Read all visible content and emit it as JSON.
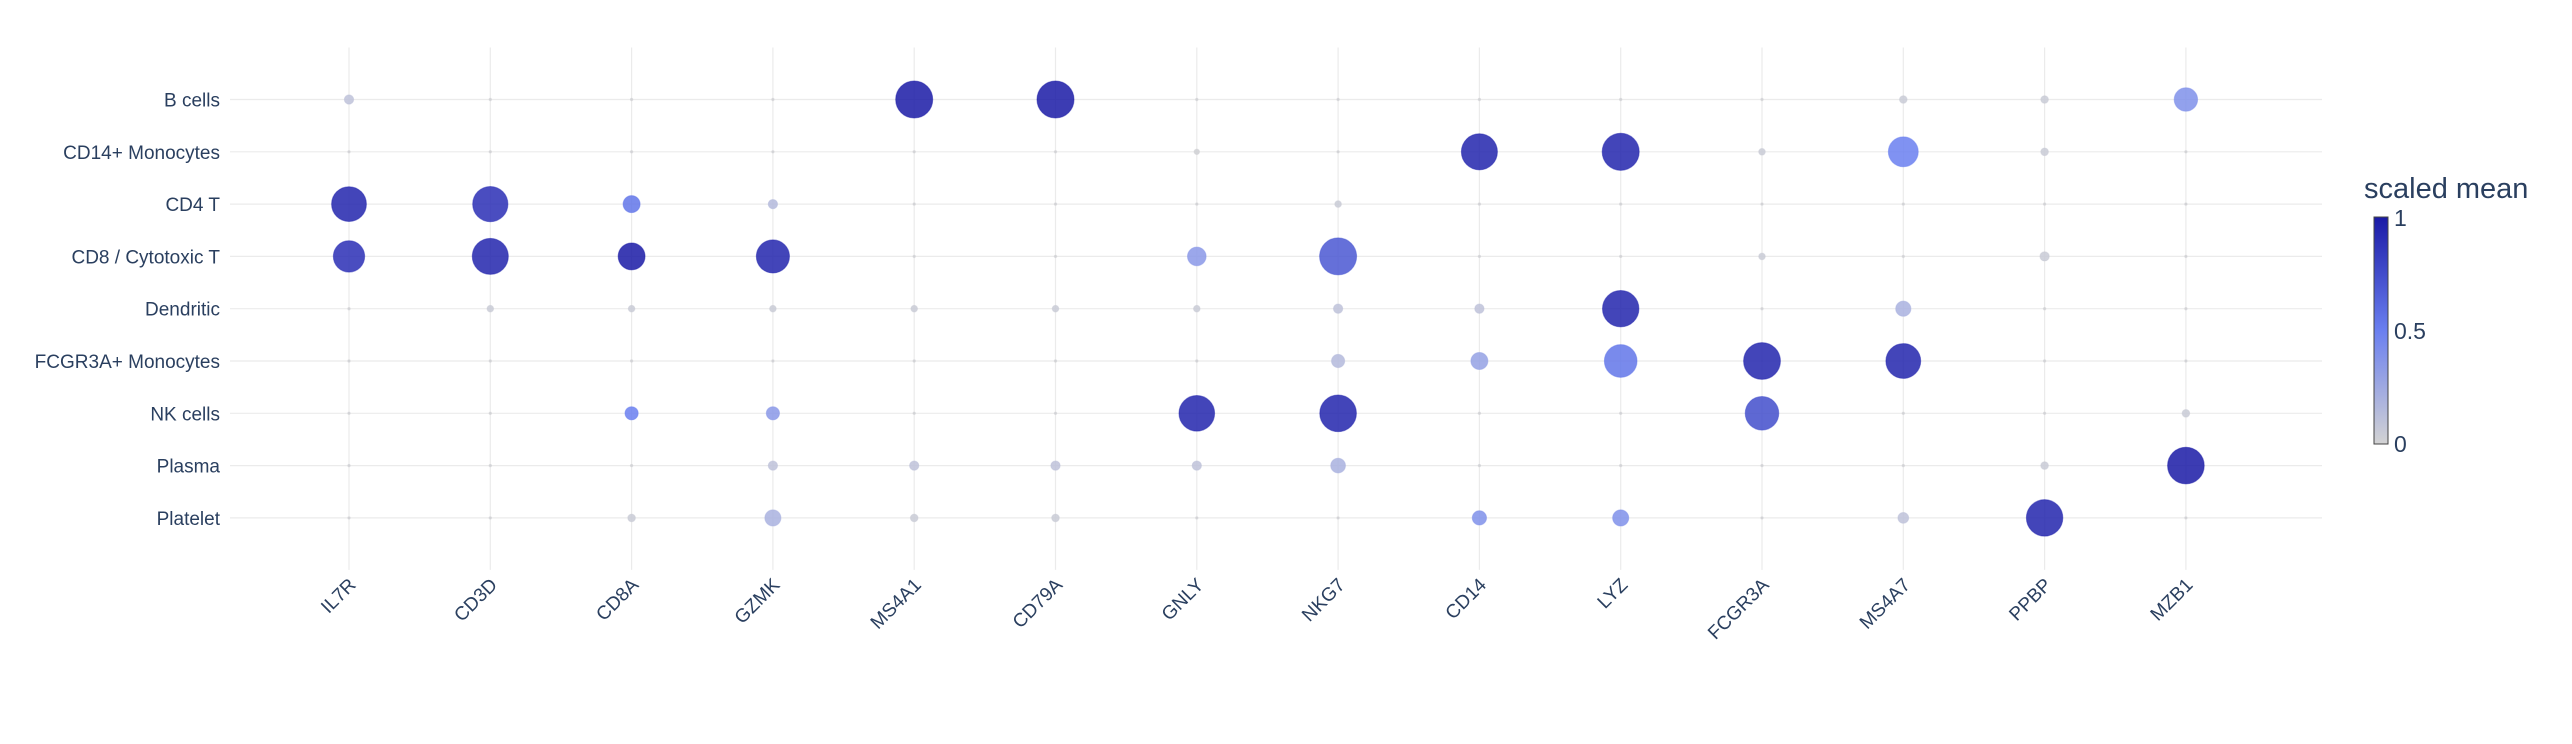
{
  "chart_data": {
    "type": "scatter",
    "subtype": "dot-plot",
    "genes": [
      "IL7R",
      "CD3D",
      "CD8A",
      "GZMK",
      "MS4A1",
      "CD79A",
      "GNLY",
      "NKG7",
      "CD14",
      "LYZ",
      "FCGR3A",
      "MS4A7",
      "PPBP",
      "MZB1"
    ],
    "cell_types": [
      "B cells",
      "CD14+ Monocytes",
      "CD4 T",
      "CD8 / Cytotoxic T",
      "Dendritic",
      "FCGR3A+ Monocytes",
      "NK cells",
      "Plasma",
      "Platelet"
    ],
    "colorbar": {
      "title": "scaled mean",
      "range": [
        0,
        1
      ],
      "ticks": [
        "0",
        "0.5",
        "1"
      ],
      "colorscale": [
        "#d3d3d3",
        "#6a7ff0",
        "#1a1aa6"
      ]
    },
    "grid": true,
    "note_fields": [
      "values: scaled mean expression (color)",
      "fraction: fraction of cells expressing (size)"
    ],
    "values": [
      [
        0.1,
        0.02,
        0.02,
        0.02,
        1.0,
        1.0,
        0.02,
        0.02,
        0.02,
        0.02,
        0.02,
        0.05,
        0.05,
        0.4
      ],
      [
        0.02,
        0.02,
        0.02,
        0.02,
        0.02,
        0.02,
        0.02,
        0.02,
        0.95,
        0.95,
        0.05,
        0.5,
        0.05,
        0.02
      ],
      [
        0.95,
        0.9,
        0.55,
        0.15,
        0.02,
        0.02,
        0.02,
        0.05,
        0.02,
        0.02,
        0.02,
        0.02,
        0.02,
        0.02
      ],
      [
        0.9,
        0.95,
        1.0,
        0.95,
        0.02,
        0.02,
        0.35,
        0.7,
        0.02,
        0.02,
        0.05,
        0.02,
        0.05,
        0.02
      ],
      [
        0.02,
        0.05,
        0.05,
        0.05,
        0.05,
        0.05,
        0.05,
        0.1,
        0.1,
        0.95,
        0.02,
        0.2,
        0.02,
        0.02
      ],
      [
        0.02,
        0.02,
        0.02,
        0.02,
        0.02,
        0.02,
        0.02,
        0.15,
        0.3,
        0.55,
        0.95,
        0.95,
        0.02,
        0.02
      ],
      [
        0.02,
        0.02,
        0.5,
        0.35,
        0.02,
        0.02,
        0.95,
        0.95,
        0.02,
        0.02,
        0.75,
        0.02,
        0.02,
        0.05
      ],
      [
        0.02,
        0.02,
        0.02,
        0.1,
        0.1,
        0.1,
        0.1,
        0.2,
        0.02,
        0.02,
        0.02,
        0.02,
        0.05,
        1.0
      ],
      [
        0.02,
        0.02,
        0.05,
        0.2,
        0.05,
        0.05,
        0.02,
        0.02,
        0.4,
        0.4,
        0.02,
        0.1,
        0.95,
        0.02
      ]
    ],
    "fraction": [
      [
        0.06,
        0.0,
        0.0,
        0.0,
        0.95,
        0.95,
        0.0,
        0.0,
        0.0,
        0.0,
        0.0,
        0.04,
        0.04,
        0.38
      ],
      [
        0.0,
        0.0,
        0.0,
        0.0,
        0.0,
        0.0,
        0.02,
        0.0,
        0.9,
        0.95,
        0.03,
        0.62,
        0.04,
        0.0
      ],
      [
        0.84,
        0.86,
        0.2,
        0.06,
        0.0,
        0.0,
        0.0,
        0.03,
        0.0,
        0.0,
        0.0,
        0.0,
        0.0,
        0.0
      ],
      [
        0.68,
        0.9,
        0.5,
        0.76,
        0.0,
        0.0,
        0.24,
        0.95,
        0.0,
        0.0,
        0.03,
        0.0,
        0.06,
        0.0
      ],
      [
        0.0,
        0.03,
        0.03,
        0.03,
        0.03,
        0.03,
        0.03,
        0.06,
        0.06,
        0.92,
        0.0,
        0.16,
        0.0,
        0.0
      ],
      [
        0.0,
        0.0,
        0.0,
        0.0,
        0.0,
        0.0,
        0.0,
        0.12,
        0.2,
        0.74,
        0.94,
        0.84,
        0.0,
        0.0
      ],
      [
        0.0,
        0.0,
        0.12,
        0.12,
        0.0,
        0.0,
        0.88,
        0.93,
        0.0,
        0.0,
        0.78,
        0.0,
        0.0,
        0.04
      ],
      [
        0.0,
        0.0,
        0.0,
        0.06,
        0.06,
        0.06,
        0.06,
        0.15,
        0.0,
        0.0,
        0.0,
        0.0,
        0.04,
        0.93
      ],
      [
        0.0,
        0.0,
        0.04,
        0.18,
        0.04,
        0.04,
        0.0,
        0.0,
        0.14,
        0.18,
        0.0,
        0.08,
        0.92,
        0.0
      ]
    ]
  }
}
